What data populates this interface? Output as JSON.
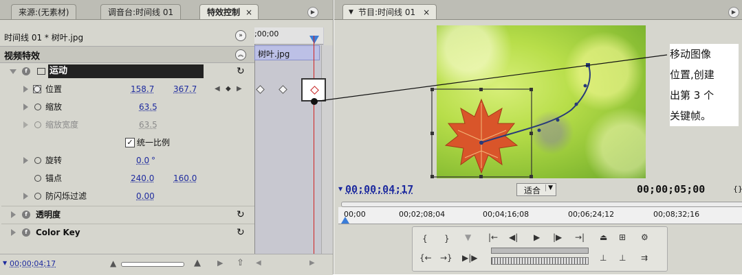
{
  "left_panel": {
    "tabs": [
      {
        "label": "来源:(无素材)"
      },
      {
        "label": "调音台:时间线 01"
      },
      {
        "label": "特效控制"
      }
    ],
    "clip_header": "时间线 01 * 树叶.jpg",
    "timeline_start": ";00;00",
    "clip_bar_label": "树叶.jpg",
    "section_title": "视频特效",
    "effects": {
      "motion": {
        "label": "运动",
        "position": {
          "label": "位置",
          "x": "158.7",
          "y": "367.7"
        },
        "scale": {
          "label": "缩放",
          "value": "63.5"
        },
        "scale_width": {
          "label": "缩放宽度",
          "value": "63.5"
        },
        "uniform_scale": {
          "label": "统一比例",
          "checked": true
        },
        "rotation": {
          "label": "旋转",
          "value": "0.0",
          "unit": "°"
        },
        "anchor": {
          "label": "锚点",
          "x": "240.0",
          "y": "160.0"
        },
        "antiflicker": {
          "label": "防闪烁过滤",
          "value": "0.00"
        }
      },
      "opacity": {
        "label": "透明度"
      },
      "color_key": {
        "label": "Color Key"
      }
    },
    "footer_timecode": "00;00;04;17"
  },
  "right_panel": {
    "tab": "节目:时间线 01",
    "current_timecode": "00;00;04;17",
    "fit_label": "适合",
    "duration_timecode": "00;00;05;00",
    "ruler_labels": [
      "00;00",
      "00;02;08;04",
      "00;04;16;08",
      "00;06;24;12",
      "00;08;32;16"
    ]
  },
  "annotation": {
    "lines": [
      "移动图像",
      "位置,创建",
      "出第 3 个",
      "关键帧。"
    ]
  },
  "colors": {
    "panel_bg": "#d6d6ce",
    "timeline_bg": "#c8c8d0",
    "timecode_blue": "#1d2a9e",
    "playhead_red": "#d02020",
    "motion_path": "#283a7a"
  }
}
